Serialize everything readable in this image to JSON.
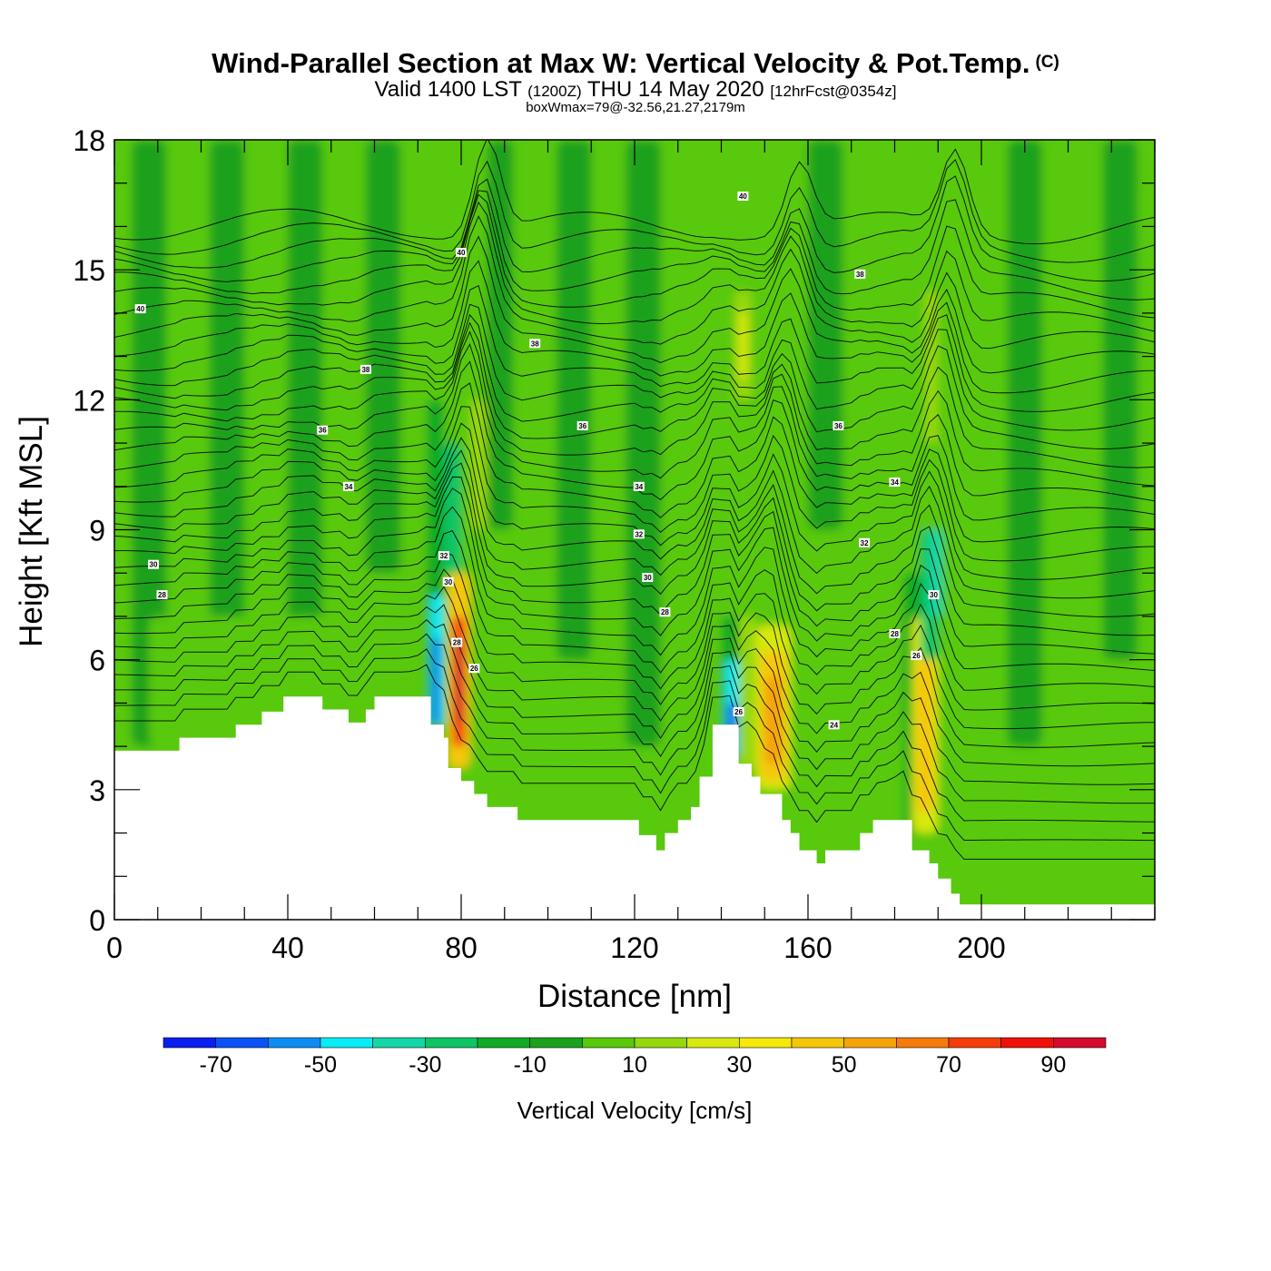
{
  "header": {
    "title": "Wind-Parallel Section at Max W: Vertical Velocity & Pot.Temp.",
    "copyright": "(C)",
    "valid_a": "Valid 1400 LST",
    "valid_z": "(1200Z)",
    "valid_b": "THU 14 May 2020",
    "valid_fcst": "[12hrFcst@0354z]",
    "box": "boxWmax=79@-32.56,21.27,2179m"
  },
  "chart_data": {
    "type": "heatmap",
    "title": "Wind-Parallel Section at Max W: Vertical Velocity & Pot.Temp.",
    "xlabel": "Distance [nm]",
    "ylabel": "Height [Kft MSL]",
    "xlim": [
      0,
      240
    ],
    "ylim": [
      0,
      18
    ],
    "x_ticks": [
      0,
      40,
      80,
      120,
      160,
      200
    ],
    "x_tick_labels": [
      "0",
      "40",
      "80",
      "120",
      "160",
      "200"
    ],
    "y_ticks": [
      0,
      3,
      6,
      9,
      12,
      15,
      18
    ],
    "y_tick_labels": [
      "0",
      "3",
      "6",
      "9",
      "12",
      "15",
      "18"
    ],
    "x_minor_step": 10,
    "y_minor_step": 1,
    "terrain": [
      [
        0,
        3.9
      ],
      [
        15,
        3.9
      ],
      [
        15,
        4.2
      ],
      [
        28,
        4.2
      ],
      [
        28,
        4.5
      ],
      [
        34,
        4.5
      ],
      [
        34,
        4.8
      ],
      [
        39,
        4.8
      ],
      [
        39,
        5.15
      ],
      [
        48,
        5.15
      ],
      [
        48,
        4.85
      ],
      [
        54,
        4.85
      ],
      [
        54,
        4.55
      ],
      [
        58,
        4.55
      ],
      [
        58,
        4.85
      ],
      [
        60,
        4.85
      ],
      [
        60,
        5.15
      ],
      [
        73,
        5.15
      ],
      [
        73,
        4.5
      ],
      [
        76,
        4.5
      ],
      [
        76,
        4.2
      ],
      [
        77,
        4.2
      ],
      [
        77,
        3.5
      ],
      [
        80,
        3.5
      ],
      [
        80,
        3.2
      ],
      [
        83,
        3.2
      ],
      [
        83,
        2.9
      ],
      [
        86,
        2.9
      ],
      [
        86,
        2.6
      ],
      [
        93,
        2.6
      ],
      [
        93,
        2.3
      ],
      [
        121,
        2.3
      ],
      [
        121,
        1.95
      ],
      [
        125,
        1.95
      ],
      [
        125,
        1.6
      ],
      [
        127,
        1.6
      ],
      [
        127,
        2.0
      ],
      [
        130,
        2.0
      ],
      [
        130,
        2.3
      ],
      [
        133,
        2.3
      ],
      [
        133,
        2.6
      ],
      [
        135,
        2.6
      ],
      [
        135,
        3.3
      ],
      [
        138,
        3.3
      ],
      [
        138,
        4.5
      ],
      [
        144,
        4.5
      ],
      [
        144,
        3.6
      ],
      [
        147,
        3.6
      ],
      [
        147,
        3.3
      ],
      [
        149,
        3.3
      ],
      [
        149,
        2.9
      ],
      [
        154,
        2.9
      ],
      [
        154,
        2.3
      ],
      [
        156,
        2.3
      ],
      [
        156,
        2.0
      ],
      [
        158,
        2.0
      ],
      [
        158,
        1.6
      ],
      [
        162,
        1.6
      ],
      [
        162,
        1.3
      ],
      [
        164,
        1.3
      ],
      [
        164,
        1.6
      ],
      [
        172,
        1.6
      ],
      [
        172,
        2.0
      ],
      [
        175,
        2.0
      ],
      [
        175,
        2.3
      ],
      [
        184,
        2.3
      ],
      [
        184,
        1.6
      ],
      [
        188,
        1.6
      ],
      [
        188,
        1.3
      ],
      [
        190,
        1.3
      ],
      [
        190,
        0.95
      ],
      [
        193,
        0.95
      ],
      [
        193,
        0.6
      ],
      [
        195,
        0.6
      ],
      [
        195,
        0.35
      ],
      [
        240,
        0.35
      ]
    ],
    "w_cells": [
      {
        "x": [
          0,
          240
        ],
        "y": [
          0,
          18
        ],
        "v": 5
      },
      {
        "x": [
          4,
          12
        ],
        "y": [
          4,
          18
        ],
        "v": -5
      },
      {
        "x": [
          22,
          30
        ],
        "y": [
          6,
          18
        ],
        "v": -5
      },
      {
        "x": [
          40,
          48
        ],
        "y": [
          6,
          18
        ],
        "v": -5
      },
      {
        "x": [
          58,
          66
        ],
        "y": [
          8,
          18
        ],
        "v": -5
      },
      {
        "x": [
          86,
          92
        ],
        "y": [
          9,
          18
        ],
        "v": -5
      },
      {
        "x": [
          102,
          110
        ],
        "y": [
          6,
          18
        ],
        "v": -5
      },
      {
        "x": [
          118,
          126
        ],
        "y": [
          4,
          18
        ],
        "v": -5
      },
      {
        "x": [
          160,
          168
        ],
        "y": [
          9,
          18
        ],
        "v": -5
      },
      {
        "x": [
          206,
          214
        ],
        "y": [
          4,
          18
        ],
        "v": -5
      },
      {
        "x": [
          228,
          236
        ],
        "y": [
          6,
          18
        ],
        "v": -5
      },
      {
        "x": [
          8,
          70
        ],
        "y": [
          4,
          7
        ],
        "v": 5
      },
      {
        "x": [
          72,
          76
        ],
        "y": [
          4.5,
          12
        ],
        "v": -15
      },
      {
        "x": [
          73,
          76
        ],
        "y": [
          4.5,
          7.5
        ],
        "v": -45
      },
      {
        "x": [
          73.5,
          75
        ],
        "y": [
          4.5,
          6.5
        ],
        "v": -65
      },
      {
        "x": [
          76,
          80
        ],
        "y": [
          8,
          11
        ],
        "v": -25
      },
      {
        "x": [
          77,
          82
        ],
        "y": [
          3.5,
          8
        ],
        "v": 45
      },
      {
        "x": [
          78,
          81
        ],
        "y": [
          4,
          7
        ],
        "v": 75
      },
      {
        "x": [
          78.5,
          80.5
        ],
        "y": [
          4.5,
          6.5
        ],
        "v": 95
      },
      {
        "x": [
          82,
          86
        ],
        "y": [
          9,
          12
        ],
        "v": 15
      },
      {
        "x": [
          140,
          144
        ],
        "y": [
          3.7,
          7
        ],
        "v": -15
      },
      {
        "x": [
          141,
          144
        ],
        "y": [
          3.8,
          6
        ],
        "v": -45
      },
      {
        "x": [
          141.5,
          143.5
        ],
        "y": [
          3.8,
          5
        ],
        "v": -65
      },
      {
        "x": [
          144,
          148
        ],
        "y": [
          3.5,
          7
        ],
        "v": 15
      },
      {
        "x": [
          148,
          156
        ],
        "y": [
          3,
          6.8
        ],
        "v": 25
      },
      {
        "x": [
          149,
          155
        ],
        "y": [
          3.2,
          6.2
        ],
        "v": 45
      },
      {
        "x": [
          150,
          154
        ],
        "y": [
          3.6,
          5.6
        ],
        "v": 55
      },
      {
        "x": [
          143,
          147
        ],
        "y": [
          12,
          14.5
        ],
        "v": 15
      },
      {
        "x": [
          144,
          146
        ],
        "y": [
          12.5,
          14
        ],
        "v": 25
      },
      {
        "x": [
          182,
          186
        ],
        "y": [
          2,
          8
        ],
        "v": -15
      },
      {
        "x": [
          184,
          190
        ],
        "y": [
          2,
          7
        ],
        "v": 25
      },
      {
        "x": [
          185,
          189
        ],
        "y": [
          2.5,
          6
        ],
        "v": 45
      },
      {
        "x": [
          186,
          190
        ],
        "y": [
          6,
          9
        ],
        "v": -25
      },
      {
        "x": [
          188,
          191
        ],
        "y": [
          7,
          9
        ],
        "v": -35
      },
      {
        "x": [
          187,
          190
        ],
        "y": [
          11,
          14.5
        ],
        "v": 15
      }
    ],
    "theta_contour_labels": [
      {
        "x": 6,
        "y": 14.1,
        "text": "40"
      },
      {
        "x": 80,
        "y": 15.4,
        "text": "40"
      },
      {
        "x": 145,
        "y": 16.7,
        "text": "40"
      },
      {
        "x": 172,
        "y": 14.9,
        "text": "38"
      },
      {
        "x": 97,
        "y": 13.3,
        "text": "38"
      },
      {
        "x": 58,
        "y": 12.7,
        "text": "38"
      },
      {
        "x": 48,
        "y": 11.3,
        "text": "36"
      },
      {
        "x": 108,
        "y": 11.4,
        "text": "36"
      },
      {
        "x": 167,
        "y": 11.4,
        "text": "36"
      },
      {
        "x": 54,
        "y": 10.0,
        "text": "34"
      },
      {
        "x": 121,
        "y": 10.0,
        "text": "34"
      },
      {
        "x": 180,
        "y": 10.1,
        "text": "34"
      },
      {
        "x": 76,
        "y": 8.4,
        "text": "32"
      },
      {
        "x": 121,
        "y": 8.9,
        "text": "32"
      },
      {
        "x": 173,
        "y": 8.7,
        "text": "32"
      },
      {
        "x": 9,
        "y": 8.2,
        "text": "30"
      },
      {
        "x": 77,
        "y": 7.8,
        "text": "30"
      },
      {
        "x": 123,
        "y": 7.9,
        "text": "30"
      },
      {
        "x": 189,
        "y": 7.5,
        "text": "30"
      },
      {
        "x": 11,
        "y": 7.5,
        "text": "28"
      },
      {
        "x": 79,
        "y": 6.4,
        "text": "28"
      },
      {
        "x": 127,
        "y": 7.1,
        "text": "28"
      },
      {
        "x": 180,
        "y": 6.6,
        "text": "28"
      },
      {
        "x": 83,
        "y": 5.8,
        "text": "26"
      },
      {
        "x": 185,
        "y": 6.1,
        "text": "26"
      },
      {
        "x": 144,
        "y": 4.8,
        "text": "26"
      },
      {
        "x": 166,
        "y": 4.5,
        "text": "24"
      }
    ],
    "colorbar": {
      "label": "Vertical Velocity [cm/s]",
      "boundaries": [
        -80,
        -70,
        -60,
        -50,
        -40,
        -30,
        -20,
        -10,
        0,
        10,
        20,
        30,
        40,
        50,
        60,
        70,
        80,
        90,
        100
      ],
      "colors": [
        "#0a1ef0",
        "#0a52f5",
        "#0c8cf5",
        "#07ecf5",
        "#14d6a6",
        "#0ec465",
        "#10ab24",
        "#1ca11c",
        "#58c90b",
        "#96d80c",
        "#d8e810",
        "#f5e80a",
        "#f5c70b",
        "#f5a30b",
        "#f57c0a",
        "#f53d0a",
        "#f0100a",
        "#d40a2e"
      ],
      "tick_values": [
        -70,
        -50,
        -30,
        -10,
        10,
        30,
        50,
        70,
        90
      ],
      "tick_labels": [
        "-70",
        "-50",
        "-30",
        "-10",
        "10",
        "30",
        "50",
        "70",
        "90"
      ]
    }
  }
}
